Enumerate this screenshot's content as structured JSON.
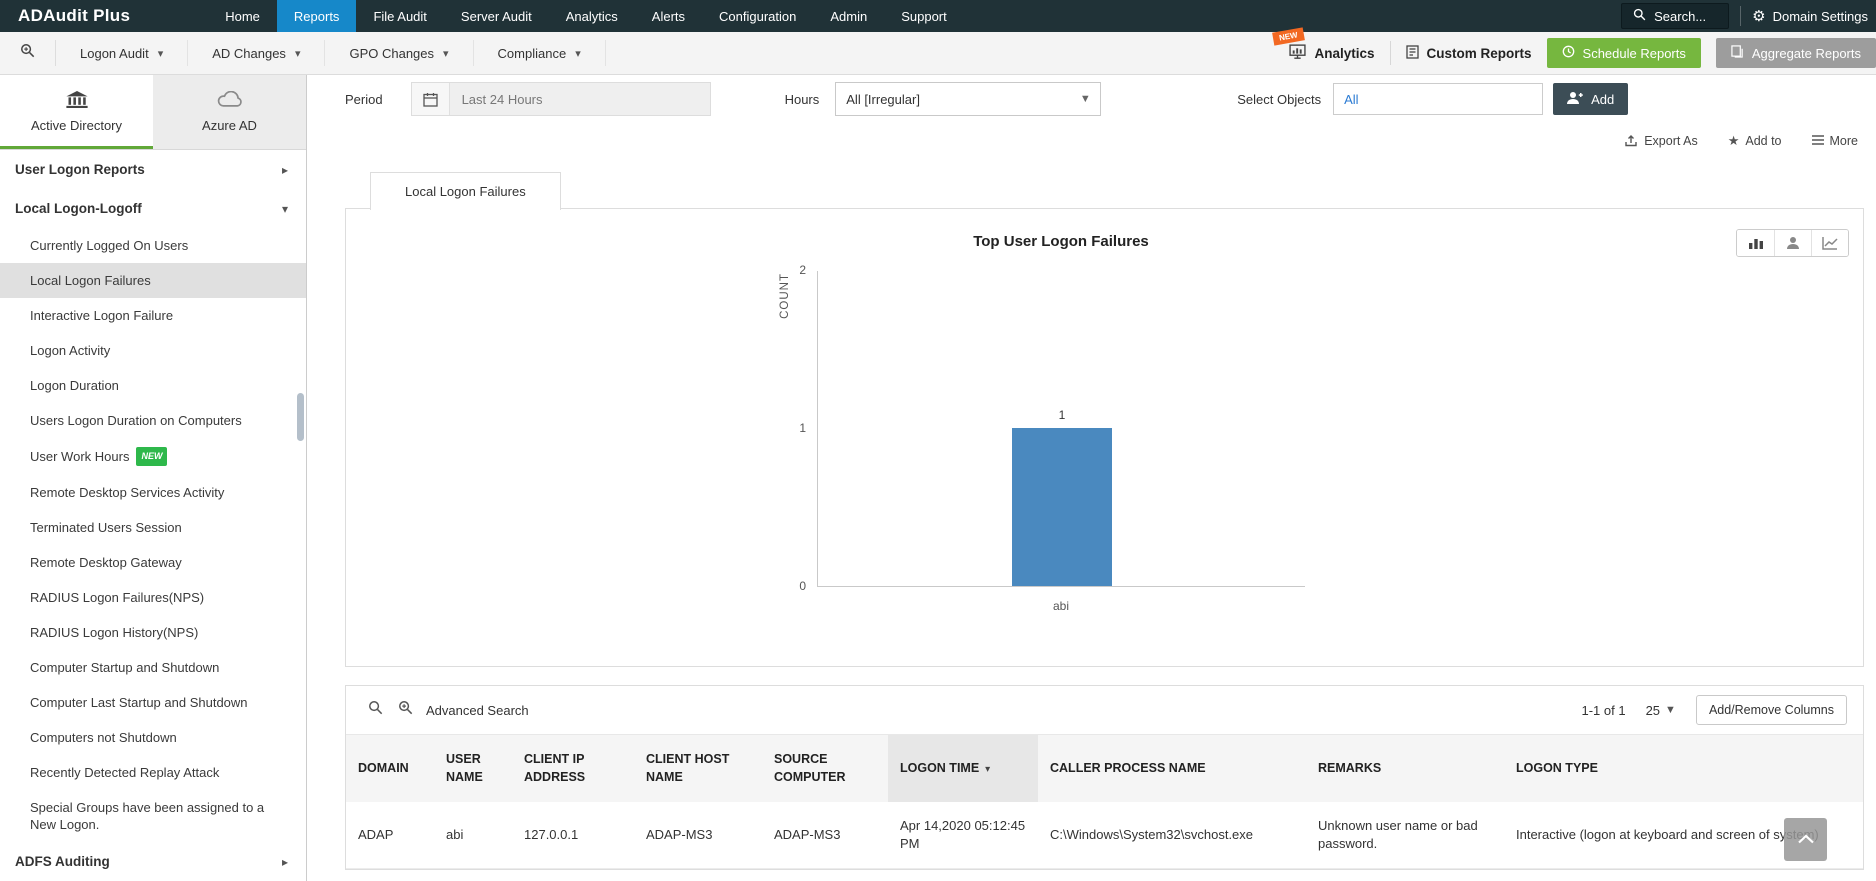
{
  "topnav": {
    "brand": "ADAudit Plus",
    "items": [
      {
        "label": "Home"
      },
      {
        "label": "Reports",
        "active": true
      },
      {
        "label": "File Audit"
      },
      {
        "label": "Server Audit"
      },
      {
        "label": "Analytics"
      },
      {
        "label": "Alerts"
      },
      {
        "label": "Configuration"
      },
      {
        "label": "Admin"
      },
      {
        "label": "Support"
      }
    ],
    "search_label": "Search...",
    "domain_settings": "Domain Settings"
  },
  "toolbar": {
    "menus": [
      "Logon Audit",
      "AD Changes",
      "GPO Changes",
      "Compliance"
    ],
    "right": {
      "analytics": "Analytics",
      "new_badge": "NEW",
      "custom_reports": "Custom Reports",
      "schedule_reports": "Schedule Reports",
      "aggregate_reports": "Aggregate Reports"
    }
  },
  "sidebar": {
    "tabs": [
      {
        "label": "Active Directory",
        "active": true
      },
      {
        "label": "Azure AD",
        "active": false
      }
    ],
    "groups": [
      {
        "label": "User Logon Reports",
        "expanded": false,
        "items": []
      },
      {
        "label": "Local Logon-Logoff",
        "expanded": true,
        "items": [
          {
            "label": "Currently Logged On Users"
          },
          {
            "label": "Local Logon Failures",
            "selected": true
          },
          {
            "label": "Interactive Logon Failure"
          },
          {
            "label": "Logon Activity"
          },
          {
            "label": "Logon Duration"
          },
          {
            "label": "Users Logon Duration on Computers"
          },
          {
            "label": "User Work Hours",
            "badge": "NEW"
          },
          {
            "label": "Remote Desktop Services Activity"
          },
          {
            "label": "Terminated Users Session"
          },
          {
            "label": "Remote Desktop Gateway"
          },
          {
            "label": "RADIUS Logon Failures(NPS)"
          },
          {
            "label": "RADIUS Logon History(NPS)"
          },
          {
            "label": "Computer Startup and Shutdown"
          },
          {
            "label": "Computer Last Startup and Shutdown"
          },
          {
            "label": "Computers not Shutdown"
          },
          {
            "label": "Recently Detected Replay Attack"
          },
          {
            "label": "Special Groups have been assigned to a New Logon."
          }
        ]
      },
      {
        "label": "ADFS Auditing",
        "expanded": false,
        "items": []
      }
    ]
  },
  "filters": {
    "period_label": "Period",
    "period_value": "Last 24 Hours",
    "hours_label": "Hours",
    "hours_value": "All [Irregular]",
    "select_objects_label": "Select Objects",
    "select_objects_value": "All",
    "add_label": "Add"
  },
  "actions": {
    "export_as": "Export As",
    "add_to": "Add to",
    "more": "More"
  },
  "report": {
    "tab_label": "Local Logon Failures"
  },
  "chart_data": {
    "type": "bar",
    "title": "Top User Logon Failures",
    "categories": [
      "abi"
    ],
    "values": [
      1
    ],
    "xlabel": "",
    "ylabel": "COUNT",
    "ylim": [
      0,
      2
    ],
    "yticks": [
      0,
      1,
      2
    ],
    "grid": false,
    "legend": "none",
    "bar_color": "#4a89bf"
  },
  "table": {
    "advanced_search": "Advanced Search",
    "pagination": "1-1 of 1",
    "page_size": "25",
    "add_remove_columns": "Add/Remove Columns",
    "sort_column_index": 5,
    "columns": [
      "DOMAIN",
      "USER NAME",
      "CLIENT IP ADDRESS",
      "CLIENT HOST NAME",
      "SOURCE COMPUTER",
      "LOGON TIME",
      "CALLER PROCESS NAME",
      "REMARKS",
      "LOGON TYPE"
    ],
    "rows": [
      [
        "ADAP",
        "abi",
        "127.0.0.1",
        "ADAP-MS3",
        "ADAP-MS3",
        "Apr 14,2020 05:12:45 PM",
        "C:\\Windows\\System32\\svchost.exe",
        "Unknown user name or bad password.",
        "Interactive (logon at keyboard and screen of system)"
      ]
    ]
  }
}
